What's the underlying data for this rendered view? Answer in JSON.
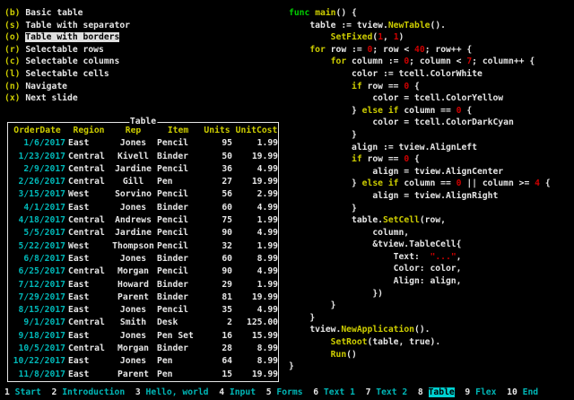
{
  "colors": {
    "background": "#000000",
    "foreground": "#e6e6e6",
    "yellow": "#cdcd00",
    "green": "#00cd00",
    "red": "#cd0000",
    "cyan": "#00b7b7",
    "menu_highlight_bg": "#e0e0e0",
    "status_highlight_bg": "#00d1d1"
  },
  "menu": {
    "items": [
      {
        "key": "(b)",
        "label": "Basic table",
        "selected": false
      },
      {
        "key": "(s)",
        "label": "Table with separator",
        "selected": false
      },
      {
        "key": "(o)",
        "label": "Table with borders",
        "selected": true
      },
      {
        "key": "(r)",
        "label": "Selectable rows",
        "selected": false
      },
      {
        "key": "(c)",
        "label": "Selectable columns",
        "selected": false
      },
      {
        "key": "(l)",
        "label": "Selectable cells",
        "selected": false
      },
      {
        "key": "(n)",
        "label": "Navigate",
        "selected": false
      },
      {
        "key": "(x)",
        "label": "Next slide",
        "selected": false
      }
    ]
  },
  "table": {
    "title": "Table",
    "columns": [
      "OrderDate",
      "Region",
      "Rep",
      "Item",
      "Units",
      "UnitCost"
    ],
    "rows": [
      [
        "1/6/2017",
        "East",
        "Jones",
        "Pencil",
        "95",
        "1.99"
      ],
      [
        "1/23/2017",
        "Central",
        "Kivell",
        "Binder",
        "50",
        "19.99"
      ],
      [
        "2/9/2017",
        "Central",
        "Jardine",
        "Pencil",
        "36",
        "4.99"
      ],
      [
        "2/26/2017",
        "Central",
        "Gill",
        "Pen",
        "27",
        "19.99"
      ],
      [
        "3/15/2017",
        "West",
        "Sorvino",
        "Pencil",
        "56",
        "2.99"
      ],
      [
        "4/1/2017",
        "East",
        "Jones",
        "Binder",
        "60",
        "4.99"
      ],
      [
        "4/18/2017",
        "Central",
        "Andrews",
        "Pencil",
        "75",
        "1.99"
      ],
      [
        "5/5/2017",
        "Central",
        "Jardine",
        "Pencil",
        "90",
        "4.99"
      ],
      [
        "5/22/2017",
        "West",
        "Thompson",
        "Pencil",
        "32",
        "1.99"
      ],
      [
        "6/8/2017",
        "East",
        "Jones",
        "Binder",
        "60",
        "8.99"
      ],
      [
        "6/25/2017",
        "Central",
        "Morgan",
        "Pencil",
        "90",
        "4.99"
      ],
      [
        "7/12/2017",
        "East",
        "Howard",
        "Binder",
        "29",
        "1.99"
      ],
      [
        "7/29/2017",
        "East",
        "Parent",
        "Binder",
        "81",
        "19.99"
      ],
      [
        "8/15/2017",
        "East",
        "Jones",
        "Pencil",
        "35",
        "4.99"
      ],
      [
        "9/1/2017",
        "Central",
        "Smith",
        "Desk",
        "2",
        "125.00"
      ],
      [
        "9/18/2017",
        "East",
        "Jones",
        "Pen Set",
        "16",
        "15.99"
      ],
      [
        "10/5/2017",
        "Central",
        "Morgan",
        "Binder",
        "28",
        "8.99"
      ],
      [
        "10/22/2017",
        "East",
        "Jones",
        "Pen",
        "64",
        "8.99"
      ],
      [
        "11/8/2017",
        "East",
        "Parent",
        "Pen",
        "15",
        "19.99"
      ]
    ]
  },
  "code": {
    "lines": [
      [
        [
          "g",
          "func"
        ],
        [
          "w",
          " "
        ],
        [
          "y",
          "main"
        ],
        [
          "w",
          "() {"
        ]
      ],
      [
        [
          "w",
          "    table := tview."
        ],
        [
          "y",
          "NewTable"
        ],
        [
          "w",
          "()."
        ]
      ],
      [
        [
          "w",
          "        "
        ],
        [
          "y",
          "SetFixed"
        ],
        [
          "w",
          "("
        ],
        [
          "r",
          "1"
        ],
        [
          "w",
          ", "
        ],
        [
          "r",
          "1"
        ],
        [
          "w",
          ")"
        ]
      ],
      [
        [
          "w",
          "    "
        ],
        [
          "y",
          "for"
        ],
        [
          "w",
          " row := "
        ],
        [
          "r",
          "0"
        ],
        [
          "w",
          "; row < "
        ],
        [
          "r",
          "40"
        ],
        [
          "w",
          "; row++ {"
        ]
      ],
      [
        [
          "w",
          "        "
        ],
        [
          "y",
          "for"
        ],
        [
          "w",
          " column := "
        ],
        [
          "r",
          "0"
        ],
        [
          "w",
          "; column < "
        ],
        [
          "r",
          "7"
        ],
        [
          "w",
          "; column++ {"
        ]
      ],
      [
        [
          "w",
          "            color := tcell.ColorWhite"
        ]
      ],
      [
        [
          "w",
          "            "
        ],
        [
          "y",
          "if"
        ],
        [
          "w",
          " row == "
        ],
        [
          "r",
          "0"
        ],
        [
          "w",
          " {"
        ]
      ],
      [
        [
          "w",
          "                color = tcell.ColorYellow"
        ]
      ],
      [
        [
          "w",
          "            } "
        ],
        [
          "y",
          "else"
        ],
        [
          "w",
          " "
        ],
        [
          "y",
          "if"
        ],
        [
          "w",
          " column == "
        ],
        [
          "r",
          "0"
        ],
        [
          "w",
          " {"
        ]
      ],
      [
        [
          "w",
          "                color = tcell.ColorDarkCyan"
        ]
      ],
      [
        [
          "w",
          "            }"
        ]
      ],
      [
        [
          "w",
          "            align := tview.AlignLeft"
        ]
      ],
      [
        [
          "w",
          "            "
        ],
        [
          "y",
          "if"
        ],
        [
          "w",
          " row == "
        ],
        [
          "r",
          "0"
        ],
        [
          "w",
          " {"
        ]
      ],
      [
        [
          "w",
          "                align = tview.AlignCenter"
        ]
      ],
      [
        [
          "w",
          "            } "
        ],
        [
          "y",
          "else"
        ],
        [
          "w",
          " "
        ],
        [
          "y",
          "if"
        ],
        [
          "w",
          " column == "
        ],
        [
          "r",
          "0"
        ],
        [
          "w",
          " || column >= "
        ],
        [
          "r",
          "4"
        ],
        [
          "w",
          " {"
        ]
      ],
      [
        [
          "w",
          "                align = tview.AlignRight"
        ]
      ],
      [
        [
          "w",
          "            }"
        ]
      ],
      [
        [
          "w",
          "            table."
        ],
        [
          "y",
          "SetCell"
        ],
        [
          "w",
          "(row,"
        ]
      ],
      [
        [
          "w",
          "                column,"
        ]
      ],
      [
        [
          "w",
          "                &tview.TableCell{"
        ]
      ],
      [
        [
          "w",
          "                    Text:  "
        ],
        [
          "r",
          "\"...\""
        ],
        [
          "w",
          ","
        ]
      ],
      [
        [
          "w",
          "                    Color: color,"
        ]
      ],
      [
        [
          "w",
          "                    Align: align,"
        ]
      ],
      [
        [
          "w",
          "                })"
        ]
      ],
      [
        [
          "w",
          "        }"
        ]
      ],
      [
        [
          "w",
          "    }"
        ]
      ],
      [
        [
          "w",
          "    tview."
        ],
        [
          "y",
          "NewApplication"
        ],
        [
          "w",
          "()."
        ]
      ],
      [
        [
          "w",
          "        "
        ],
        [
          "y",
          "SetRoot"
        ],
        [
          "w",
          "(table, true)."
        ]
      ],
      [
        [
          "w",
          "        "
        ],
        [
          "y",
          "Run"
        ],
        [
          "w",
          "()"
        ]
      ],
      [
        [
          "w",
          "}"
        ]
      ]
    ]
  },
  "statusbar": {
    "items": [
      {
        "num": "1",
        "label": "Start",
        "active": false
      },
      {
        "num": "2",
        "label": "Introduction",
        "active": false
      },
      {
        "num": "3",
        "label": "Hello, world",
        "active": false
      },
      {
        "num": "4",
        "label": "Input",
        "active": false
      },
      {
        "num": "5",
        "label": "Forms",
        "active": false
      },
      {
        "num": "6",
        "label": "Text 1",
        "active": false
      },
      {
        "num": "7",
        "label": "Text 2",
        "active": false
      },
      {
        "num": "8",
        "label": "Table",
        "active": true
      },
      {
        "num": "9",
        "label": "Flex",
        "active": false
      },
      {
        "num": "10",
        "label": "End",
        "active": false
      }
    ]
  }
}
